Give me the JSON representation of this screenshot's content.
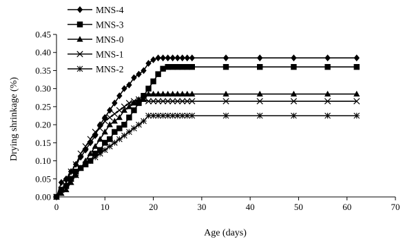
{
  "chart_data": {
    "type": "line",
    "xlabel": "Age (days)",
    "ylabel": "Drying shrinkage (%)",
    "xlim": [
      0,
      70
    ],
    "ylim": [
      0,
      0.45
    ],
    "x_ticks": [
      "0",
      "10",
      "20",
      "30",
      "40",
      "50",
      "60",
      "70"
    ],
    "y_ticks": [
      "0.00",
      "0.05",
      "0.10",
      "0.15",
      "0.20",
      "0.25",
      "0.30",
      "0.35",
      "0.40",
      "0.45"
    ],
    "grid": false,
    "legend_position": "top-left",
    "series": [
      {
        "name": "MNS-4",
        "marker": "diamond",
        "x": [
          0,
          1,
          2,
          3,
          4,
          5,
          6,
          7,
          8,
          9,
          10,
          11,
          12,
          13,
          14,
          15,
          16,
          17,
          18,
          19,
          20,
          21,
          22,
          23,
          24,
          25,
          26,
          27,
          28,
          35,
          42,
          49,
          56,
          62
        ],
        "y": [
          0.0,
          0.04,
          0.05,
          0.07,
          0.09,
          0.11,
          0.13,
          0.15,
          0.17,
          0.2,
          0.22,
          0.24,
          0.26,
          0.28,
          0.3,
          0.31,
          0.33,
          0.34,
          0.35,
          0.37,
          0.38,
          0.385,
          0.385,
          0.385,
          0.385,
          0.385,
          0.385,
          0.385,
          0.385,
          0.385,
          0.385,
          0.385,
          0.385,
          0.385
        ]
      },
      {
        "name": "MNS-3",
        "marker": "square",
        "x": [
          0,
          1,
          2,
          3,
          4,
          5,
          6,
          7,
          8,
          9,
          10,
          11,
          12,
          13,
          14,
          15,
          16,
          17,
          18,
          19,
          20,
          21,
          22,
          23,
          24,
          25,
          26,
          27,
          28,
          35,
          42,
          49,
          56,
          62
        ],
        "y": [
          0.0,
          0.02,
          0.03,
          0.05,
          0.07,
          0.08,
          0.09,
          0.1,
          0.12,
          0.13,
          0.15,
          0.16,
          0.18,
          0.19,
          0.2,
          0.22,
          0.24,
          0.26,
          0.28,
          0.3,
          0.32,
          0.34,
          0.355,
          0.36,
          0.36,
          0.36,
          0.36,
          0.36,
          0.36,
          0.36,
          0.36,
          0.36,
          0.36,
          0.36
        ]
      },
      {
        "name": "MNS-0",
        "marker": "triangle",
        "x": [
          0,
          1,
          2,
          3,
          4,
          5,
          6,
          7,
          8,
          9,
          10,
          11,
          12,
          13,
          14,
          15,
          16,
          17,
          18,
          19,
          20,
          21,
          22,
          23,
          24,
          25,
          26,
          27,
          28,
          35,
          42,
          49,
          56,
          62
        ],
        "y": [
          0.0,
          0.01,
          0.02,
          0.04,
          0.06,
          0.08,
          0.1,
          0.12,
          0.14,
          0.16,
          0.18,
          0.2,
          0.21,
          0.22,
          0.24,
          0.25,
          0.26,
          0.27,
          0.27,
          0.285,
          0.285,
          0.285,
          0.285,
          0.285,
          0.285,
          0.285,
          0.285,
          0.285,
          0.285,
          0.285,
          0.285,
          0.285,
          0.285,
          0.285
        ]
      },
      {
        "name": "MNS-1",
        "marker": "x",
        "x": [
          0,
          1,
          2,
          3,
          4,
          5,
          6,
          7,
          8,
          9,
          10,
          11,
          12,
          13,
          14,
          15,
          16,
          17,
          18,
          19,
          20,
          21,
          22,
          23,
          24,
          25,
          26,
          27,
          28,
          35,
          42,
          49,
          56,
          62
        ],
        "y": [
          0.0,
          0.02,
          0.04,
          0.07,
          0.09,
          0.12,
          0.14,
          0.16,
          0.18,
          0.19,
          0.21,
          0.22,
          0.23,
          0.24,
          0.25,
          0.26,
          0.265,
          0.27,
          0.27,
          0.265,
          0.265,
          0.265,
          0.265,
          0.265,
          0.265,
          0.265,
          0.265,
          0.265,
          0.265,
          0.265,
          0.265,
          0.265,
          0.265,
          0.265
        ]
      },
      {
        "name": "MNS-2",
        "marker": "asterisk",
        "x": [
          0,
          1,
          2,
          3,
          4,
          5,
          6,
          7,
          8,
          9,
          10,
          11,
          12,
          13,
          14,
          15,
          16,
          17,
          18,
          19,
          20,
          21,
          22,
          23,
          24,
          25,
          26,
          27,
          28,
          35,
          42,
          49,
          56,
          62
        ],
        "y": [
          0.0,
          0.02,
          0.03,
          0.05,
          0.06,
          0.08,
          0.09,
          0.1,
          0.11,
          0.12,
          0.13,
          0.14,
          0.15,
          0.16,
          0.17,
          0.18,
          0.19,
          0.2,
          0.21,
          0.225,
          0.225,
          0.225,
          0.225,
          0.225,
          0.225,
          0.225,
          0.225,
          0.225,
          0.225,
          0.225,
          0.225,
          0.225,
          0.225,
          0.225
        ]
      }
    ]
  }
}
